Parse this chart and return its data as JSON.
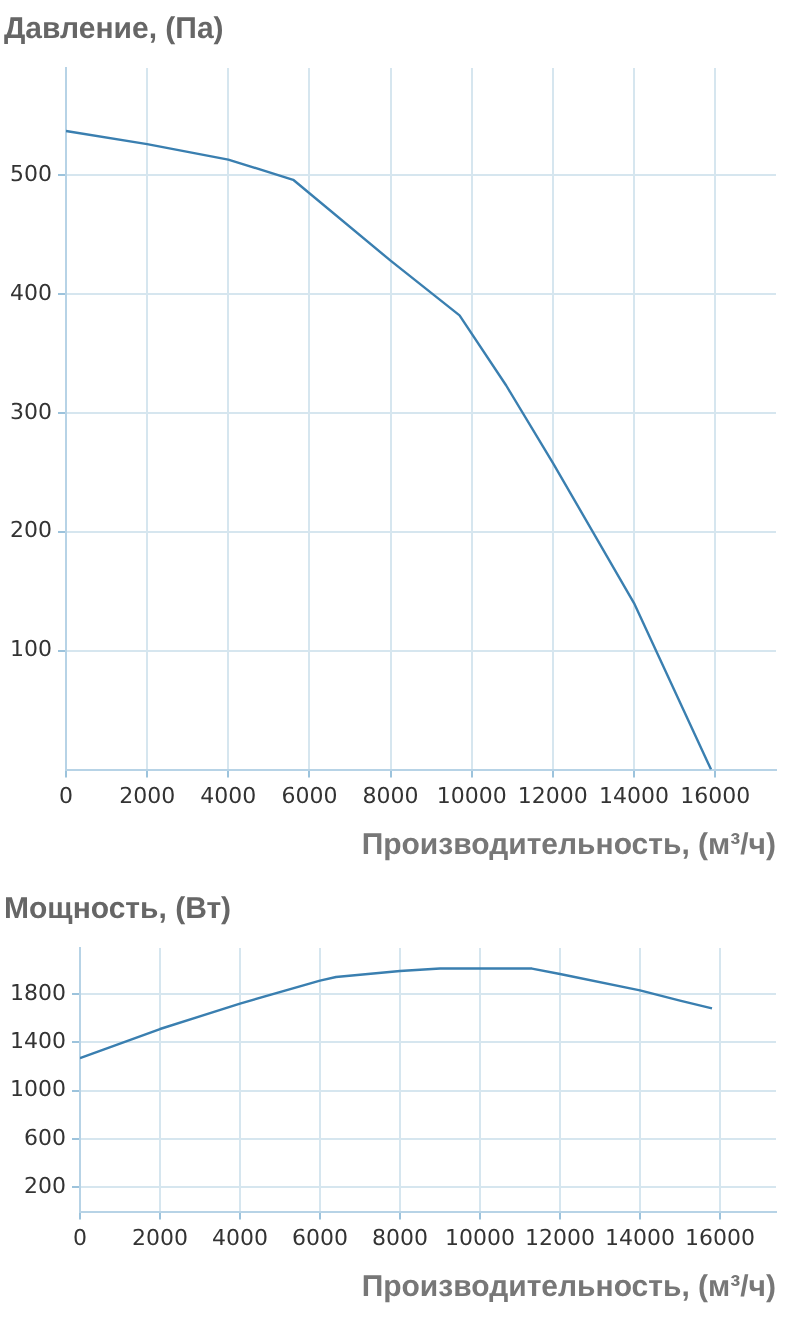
{
  "chart_data": [
    {
      "type": "line",
      "title": "Давление, (Па)",
      "xlabel": "Производительность, (м³/ч)",
      "x": [
        0,
        2000,
        4000,
        5600,
        8000,
        9700,
        10850,
        12000,
        14000,
        15900
      ],
      "series": [
        {
          "color": "#3a7fb0",
          "values": [
            537,
            526,
            513,
            496,
            428,
            382,
            323,
            258,
            140,
            0
          ]
        }
      ],
      "xlim": [
        0,
        17500
      ],
      "xticks": [
        0,
        2000,
        4000,
        6000,
        8000,
        10000,
        12000,
        14000,
        16000
      ],
      "ylim": [
        0,
        590
      ],
      "yticks": [
        100,
        200,
        300,
        400,
        500
      ],
      "grid": true,
      "legend": false,
      "marker": "none",
      "line_style": "solid"
    },
    {
      "type": "line",
      "title": "Мощность, (Вт)",
      "xlabel": "Производительность, (м³/ч)",
      "x": [
        0,
        2000,
        4000,
        6000,
        6400,
        8000,
        9000,
        11300,
        12000,
        14000,
        15000,
        15800
      ],
      "series": [
        {
          "color": "#3a7fb0",
          "values": [
            1270,
            1510,
            1720,
            1910,
            1940,
            1990,
            2010,
            2010,
            1965,
            1830,
            1745,
            1680
          ]
        }
      ],
      "xlim": [
        0,
        17400
      ],
      "xticks": [
        0,
        2000,
        4000,
        6000,
        8000,
        10000,
        12000,
        14000,
        16000
      ],
      "ylim": [
        0,
        2180
      ],
      "yticks": [
        200,
        600,
        1000,
        1400,
        1800
      ],
      "grid": true,
      "legend": false,
      "marker": "none",
      "line_style": "solid"
    }
  ]
}
